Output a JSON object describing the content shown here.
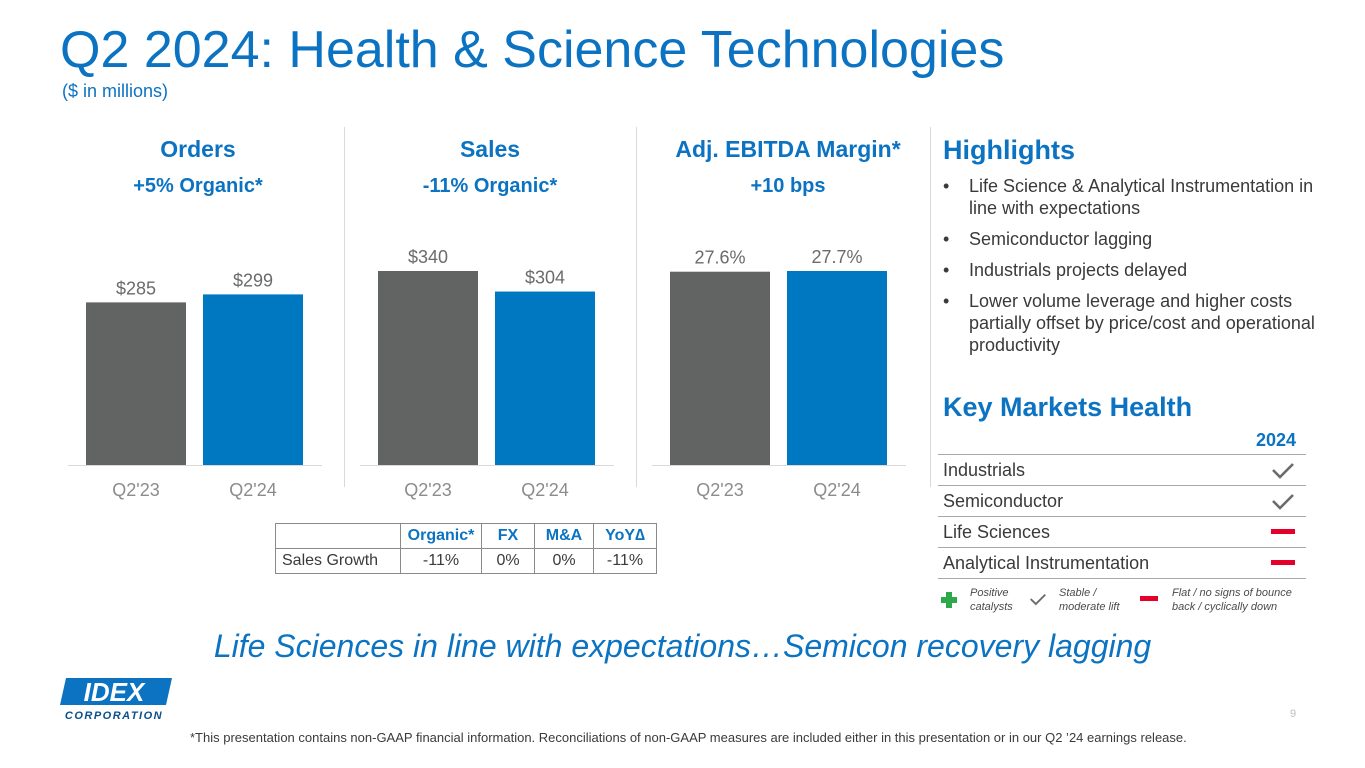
{
  "title": "Q2 2024: Health & Science Technologies",
  "subtitle": "($ in millions)",
  "colors": {
    "brand_blue": "#0b73c1",
    "bar_gray": "#626363",
    "bar_blue": "#0077c1",
    "minus_red": "#e4002b",
    "plus_green": "#2da84a"
  },
  "chart_data": [
    {
      "type": "bar",
      "title": "Orders",
      "subtitle": "+5% Organic*",
      "categories": [
        "Q2'23",
        "Q2'24"
      ],
      "values": [
        285,
        299
      ],
      "labels": [
        "$285",
        "$299"
      ],
      "ylim": [
        0,
        340
      ]
    },
    {
      "type": "bar",
      "title": "Sales",
      "subtitle": "-11% Organic*",
      "categories": [
        "Q2'23",
        "Q2'24"
      ],
      "values": [
        340,
        304
      ],
      "labels": [
        "$340",
        "$304"
      ],
      "ylim": [
        0,
        340
      ]
    },
    {
      "type": "bar",
      "title": "Adj. EBITDA Margin*",
      "subtitle": "+10 bps",
      "categories": [
        "Q2'23",
        "Q2'24"
      ],
      "values": [
        27.6,
        27.7
      ],
      "labels": [
        "27.6%",
        "27.7%"
      ],
      "ylim": [
        0,
        27.7
      ]
    }
  ],
  "growth_table": {
    "headers": [
      "",
      "Organic*",
      "FX",
      "M&A",
      "YoY∆"
    ],
    "row_label": "Sales Growth",
    "values": [
      "-11%",
      "0%",
      "0%",
      "-11%"
    ]
  },
  "highlights": {
    "title": "Highlights",
    "items": [
      "Life Science & Analytical Instrumentation in line with expectations",
      "Semiconductor lagging",
      "Industrials projects delayed",
      "Lower volume leverage and higher costs partially offset by price/cost and operational productivity"
    ]
  },
  "key_markets": {
    "title": "Key Markets Health",
    "year": "2024",
    "rows": [
      {
        "name": "Industrials",
        "status": "check-icon"
      },
      {
        "name": "Semiconductor",
        "status": "check-icon"
      },
      {
        "name": "Life Sciences",
        "status": "minus-icon"
      },
      {
        "name": "Analytical Instrumentation",
        "status": "minus-icon"
      }
    ],
    "legend": {
      "positive": "Positive catalysts",
      "stable": "Stable / moderate lift",
      "flat": "Flat / no signs of bounce back / cyclically down"
    }
  },
  "tagline": "Life Sciences in line with expectations…Semicon recovery lagging",
  "footnote": "*This presentation contains non-GAAP financial information. Reconciliations of non-GAAP measures are included either in this presentation or in our Q2 ’24 earnings release.",
  "page_number": "9",
  "logo": {
    "wordmark": "IDEX",
    "sub": "CORPORATION"
  }
}
